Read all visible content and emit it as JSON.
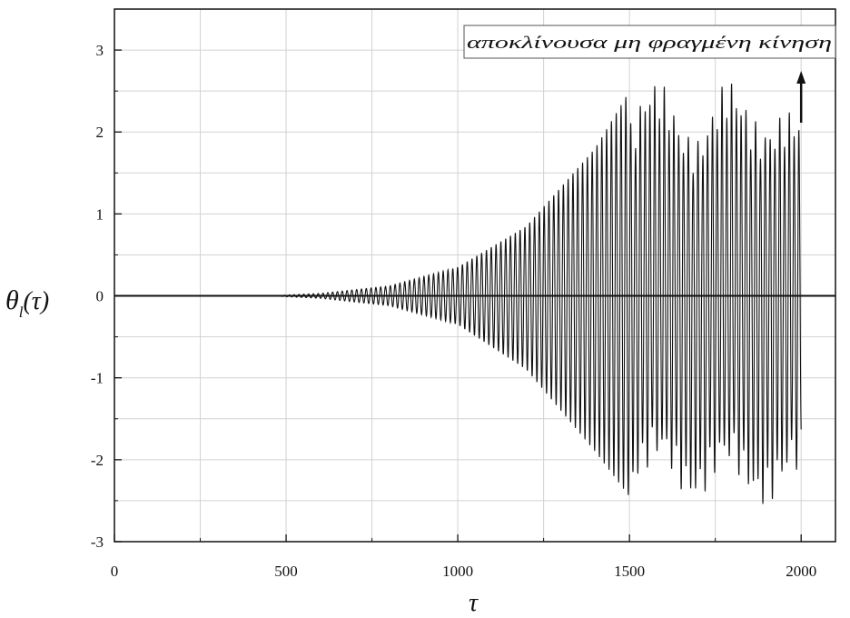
{
  "chart_data": {
    "type": "line",
    "title": "",
    "xlabel": "τ",
    "ylabel_main": "θ",
    "ylabel_sub": "l",
    "ylabel_suffix": "(τ)",
    "xlim": [
      0,
      2100
    ],
    "ylim": [
      -3,
      3.5
    ],
    "x_ticks": [
      0,
      500,
      1000,
      1500,
      2000
    ],
    "x_tick_labels": [
      "0",
      "500",
      "1000",
      "1500",
      "2000"
    ],
    "y_ticks": [
      -3,
      -2,
      -1,
      0,
      1,
      2,
      3
    ],
    "y_tick_labels": [
      "-3",
      "-2",
      "-1",
      "0",
      "1",
      "2",
      "3"
    ],
    "grid": true,
    "legend": "none",
    "annotation": {
      "text": "αποκλίνουσα μη φραγμένη κίνηση",
      "arrow_at_x": 2000
    },
    "series": [
      {
        "style": "oscillation",
        "color": "#111111",
        "zero_until": 450,
        "x": [
          450,
          600,
          800,
          1000,
          1200,
          1400,
          1500,
          1550,
          1600,
          1700,
          1800,
          1900,
          2000
        ],
        "y_max": [
          0.0,
          0.03,
          0.12,
          0.35,
          0.85,
          1.8,
          2.5,
          2.7,
          2.6,
          2.3,
          2.7,
          2.5,
          2.2
        ],
        "y_min": [
          0.0,
          -0.03,
          -0.12,
          -0.35,
          -0.9,
          -1.9,
          -2.45,
          -2.45,
          -2.4,
          -2.55,
          -2.5,
          -2.6,
          -2.6
        ]
      }
    ]
  }
}
